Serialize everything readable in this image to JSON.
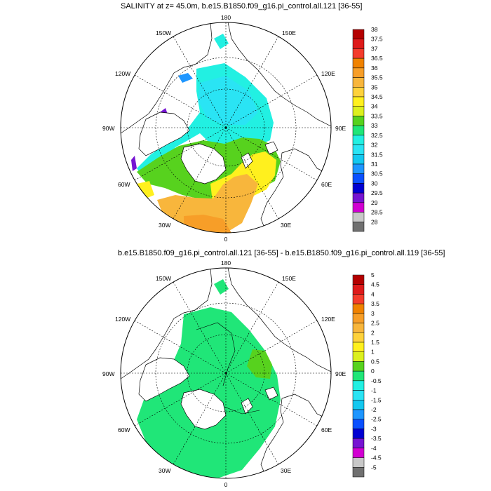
{
  "panels": [
    {
      "title": "SALINITY at z=  45.0m, b.e15.B1850.f09_g16.pi_control.all.121 [36-55]",
      "lon_labels": [
        "180",
        "150E",
        "120E",
        "90E",
        "60E",
        "30E",
        "0",
        "30W",
        "60W",
        "90W",
        "120W",
        "150W"
      ],
      "colorbar": {
        "labels": [
          "38",
          "37.5",
          "37",
          "36.5",
          "36",
          "35.5",
          "35",
          "34.5",
          "34",
          "33.5",
          "33",
          "32.5",
          "32",
          "31.5",
          "31",
          "30.5",
          "30",
          "29.5",
          "29",
          "28.5",
          "28"
        ]
      }
    },
    {
      "title": "b.e15.B1850.f09_g16.pi_control.all.121 [36-55] - b.e15.B1850.f09_g16.pi_control.all.119 [36-55]",
      "lon_labels": [
        "180",
        "150E",
        "120E",
        "90E",
        "60E",
        "30E",
        "0",
        "30W",
        "60W",
        "90W",
        "120W",
        "150W"
      ],
      "colorbar": {
        "labels": [
          "5",
          "4.5",
          "4",
          "3.5",
          "3",
          "2.5",
          "2",
          "1.5",
          "1",
          "0.5",
          "0",
          "-0.5",
          "-1",
          "-1.5",
          "-2",
          "-2.5",
          "-3",
          "-3.5",
          "-4",
          "-4.5",
          "-5"
        ]
      }
    }
  ],
  "colors": {
    "palette": [
      "#b40000",
      "#de1a1a",
      "#f43c2c",
      "#f08200",
      "#f79e28",
      "#f8b63c",
      "#fed23c",
      "#fff01e",
      "#dcf01e",
      "#57d21e",
      "#20e678",
      "#22f0e2",
      "#2ae4f4",
      "#14c8f0",
      "#1e96ff",
      "#0a50ff",
      "#0000d2",
      "#7614d2",
      "#d200d2",
      "#c8c8c8",
      "#707070"
    ],
    "land": "#ffffff",
    "coast": "#000000"
  }
}
